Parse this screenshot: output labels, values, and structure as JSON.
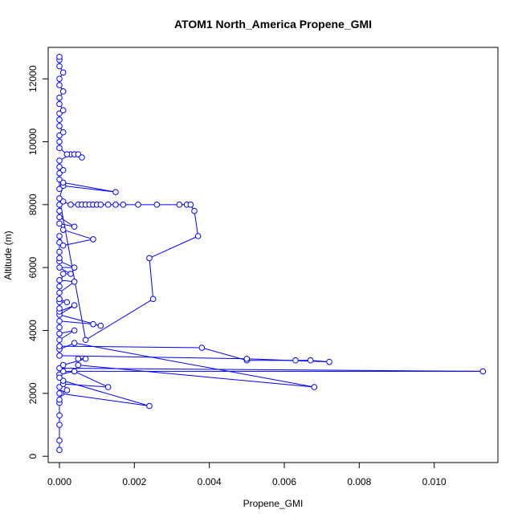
{
  "chart_data": {
    "type": "line",
    "title": "ATOM1 North_America Propene_GMI",
    "xlabel": "Propene_GMI",
    "ylabel": "Altitude (m)",
    "xlim": [
      -0.0003,
      0.0117
    ],
    "ylim": [
      -200,
      13000
    ],
    "x_ticks": [
      0,
      0.002,
      0.004,
      0.006,
      0.008,
      0.01
    ],
    "x_tick_labels": [
      "0.000",
      "0.002",
      "0.004",
      "0.006",
      "0.008",
      "0.010"
    ],
    "y_ticks": [
      0,
      2000,
      4000,
      6000,
      8000,
      10000,
      12000
    ],
    "y_tick_labels": [
      "0",
      "2000",
      "4000",
      "6000",
      "8000",
      "10000",
      "12000"
    ],
    "grid": false,
    "legend": "none",
    "series_color": "#0000ff",
    "marker": "open-circle",
    "series": [
      {
        "points": [
          [
            0.0,
            200
          ],
          [
            0.0,
            500
          ],
          [
            0.0,
            1000
          ],
          [
            0.0,
            1300
          ],
          [
            0.0,
            1700
          ],
          [
            0.0,
            1800
          ],
          [
            5e-05,
            2000
          ],
          [
            0.0,
            2200
          ],
          [
            0.0001,
            2300
          ],
          [
            0.0013,
            2200
          ],
          [
            0.0004,
            2700
          ],
          [
            0.0,
            2600
          ],
          [
            0.0001,
            2400
          ],
          [
            0.0024,
            1600
          ],
          [
            0.0,
            2000
          ],
          [
            0.0002,
            2100
          ],
          [
            0.0,
            2500
          ],
          [
            0.0001,
            2700
          ],
          [
            0.0113,
            2700
          ],
          [
            0.0,
            2800
          ],
          [
            0.0001,
            2900
          ],
          [
            0.0007,
            3100
          ],
          [
            0.0005,
            3100
          ],
          [
            0.0005,
            2900
          ],
          [
            0.0068,
            2200
          ],
          [
            0.0004,
            3600
          ],
          [
            0.0,
            3400
          ],
          [
            0.0,
            3500
          ],
          [
            0.0038,
            3450
          ],
          [
            0.005,
            3050
          ],
          [
            0.0063,
            3050
          ],
          [
            0.0067,
            3050
          ],
          [
            0.0072,
            3000
          ],
          [
            0.005,
            3100
          ],
          [
            0.0,
            3200
          ],
          [
            0.0,
            3700
          ],
          [
            0.0004,
            4000
          ],
          [
            0.0,
            3900
          ],
          [
            0.0,
            4100
          ],
          [
            0.0,
            4300
          ],
          [
            0.0009,
            4200
          ],
          [
            0.0011,
            4150
          ],
          [
            0.0,
            4500
          ],
          [
            0.0004,
            4800
          ],
          [
            0.0,
            4600
          ],
          [
            0.0,
            4700
          ],
          [
            0.0,
            4900
          ],
          [
            0.0002,
            4900
          ],
          [
            0.0,
            5000
          ],
          [
            0.0,
            5200
          ],
          [
            0.0004,
            5550
          ],
          [
            0.0,
            5600
          ],
          [
            0.0,
            5400
          ],
          [
            0.0001,
            5800
          ],
          [
            0.0003,
            5800
          ],
          [
            0.0,
            6000
          ],
          [
            0.0004,
            6000
          ],
          [
            0.0,
            6200
          ],
          [
            0.0,
            6300
          ],
          [
            0.0,
            6500
          ],
          [
            0.0,
            6800
          ],
          [
            0.0,
            7000
          ],
          [
            0.0001,
            6700
          ],
          [
            0.0009,
            6900
          ],
          [
            0.0001,
            7200
          ],
          [
            0.0,
            7400
          ],
          [
            0.0004,
            7300
          ],
          [
            0.0,
            7600
          ],
          [
            0.0,
            7800
          ],
          [
            0.0,
            8000
          ],
          [
            0.0001,
            8100
          ],
          [
            0.0003,
            8000
          ],
          [
            0.0005,
            8000
          ],
          [
            0.0006,
            8000
          ],
          [
            0.0007,
            8000
          ],
          [
            0.0008,
            8000
          ],
          [
            0.0009,
            8000
          ],
          [
            0.001,
            8000
          ],
          [
            0.0011,
            8000
          ],
          [
            0.0013,
            8000
          ],
          [
            0.0015,
            8000
          ],
          [
            0.0017,
            8000
          ],
          [
            0.0021,
            8000
          ],
          [
            0.0026,
            8000
          ],
          [
            0.0032,
            8000
          ],
          [
            0.0034,
            8000
          ],
          [
            0.0035,
            8000
          ],
          [
            0.0036,
            7800
          ],
          [
            0.0037,
            7000
          ],
          [
            0.0024,
            6300
          ],
          [
            0.0025,
            5000
          ],
          [
            0.0007,
            3700
          ],
          [
            0.0,
            8200
          ],
          [
            0.0001,
            8600
          ],
          [
            0.0015,
            8400
          ],
          [
            0.0001,
            8700
          ],
          [
            0.0,
            8500
          ],
          [
            0.0,
            8800
          ],
          [
            0.0,
            9000
          ],
          [
            0.0001,
            9100
          ],
          [
            0.0,
            9200
          ],
          [
            0.0,
            9400
          ],
          [
            0.0003,
            9600
          ],
          [
            0.0004,
            9600
          ],
          [
            0.0005,
            9600
          ],
          [
            0.0006,
            9500
          ],
          [
            0.0002,
            9600
          ],
          [
            0.0,
            9800
          ],
          [
            0.0,
            10000
          ],
          [
            0.0,
            10200
          ],
          [
            0.0001,
            10300
          ],
          [
            0.0,
            10500
          ],
          [
            0.0,
            10700
          ],
          [
            0.0,
            10900
          ],
          [
            0.0001,
            11000
          ],
          [
            0.0,
            11200
          ],
          [
            0.0,
            11400
          ],
          [
            0.0001,
            11600
          ],
          [
            0.0,
            11800
          ],
          [
            0.0,
            12000
          ],
          [
            0.0001,
            12200
          ],
          [
            0.0,
            12400
          ],
          [
            0.0,
            12600
          ],
          [
            0.0,
            12700
          ]
        ]
      }
    ]
  }
}
